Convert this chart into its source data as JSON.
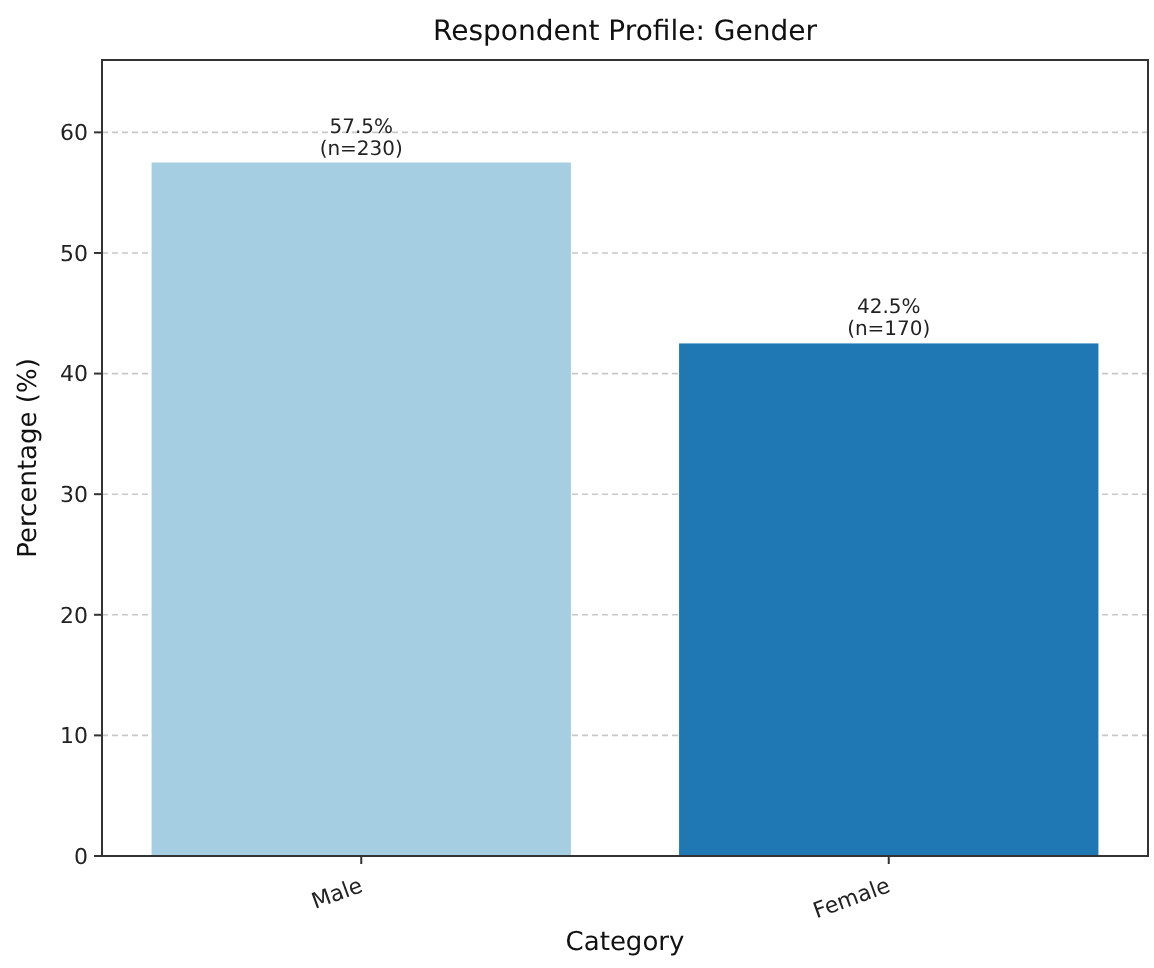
{
  "chart_data": {
    "type": "bar",
    "title": "Respondent Profile: Gender",
    "xlabel": "Category",
    "ylabel": "Percentage (%)",
    "categories": [
      "Male",
      "Female"
    ],
    "values": [
      57.5,
      42.5
    ],
    "colors": [
      "#a6cee3",
      "#1f78b4"
    ],
    "value_labels": [
      "57.5%\n(n=230)",
      "42.5%\n(n=170)"
    ],
    "ylim": [
      0,
      66
    ],
    "yticks": [
      0,
      10,
      20,
      30,
      40,
      50,
      60
    ],
    "grid": "y"
  }
}
